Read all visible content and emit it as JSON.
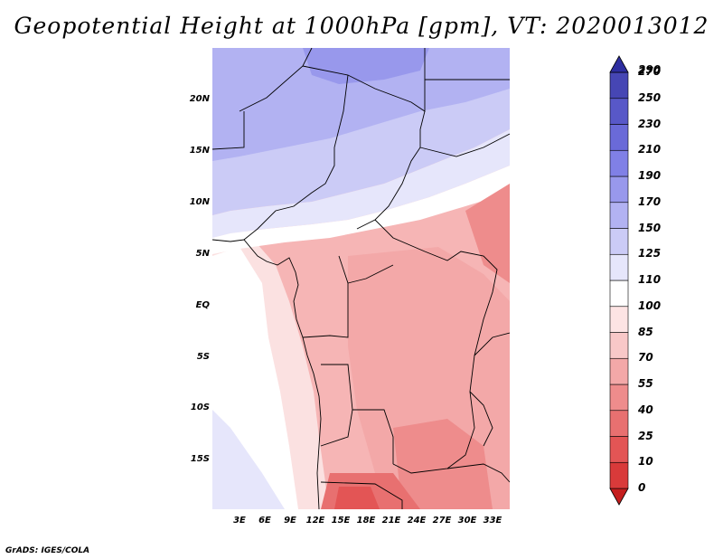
{
  "title": "Geopotential Height at 1000hPa [gpm], VT: 2020013012",
  "footer": "GrADS: IGES/COLA",
  "lat_labels": [
    "20N",
    "15N",
    "10N",
    "5N",
    "EQ",
    "5S",
    "10S",
    "15S"
  ],
  "lon_labels": [
    "3E",
    "6E",
    "9E",
    "12E",
    "15E",
    "18E",
    "21E",
    "24E",
    "27E",
    "30E",
    "33E"
  ],
  "colorbar": {
    "levels": [
      "0",
      "10",
      "25",
      "40",
      "55",
      "70",
      "85",
      "100",
      "110",
      "125",
      "150",
      "170",
      "190",
      "210",
      "230",
      "250",
      "270",
      "290"
    ],
    "colors": [
      "#c41e1e",
      "#d93a3a",
      "#e35555",
      "#e87070",
      "#ee8c8c",
      "#f3a8a8",
      "#f8c8c8",
      "#fde4e4",
      "#ffffff",
      "#e6e6fb",
      "#cbcbf6",
      "#b2b2f2",
      "#9898ec",
      "#8080e6",
      "#6a6ad8",
      "#5858c8",
      "#4646b4",
      "#2e2ea0"
    ]
  }
}
